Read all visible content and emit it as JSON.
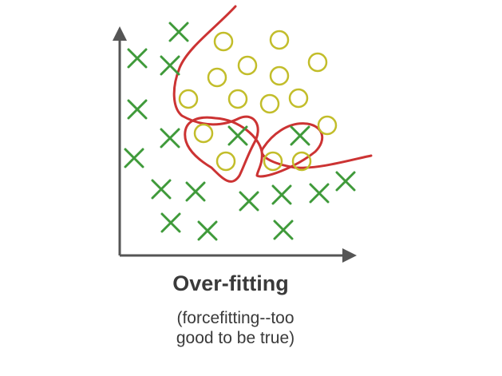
{
  "title": "Over-fitting",
  "subtitle_line1": "(forcefitting--too",
  "subtitle_line2": "good to be true)",
  "colors": {
    "cross": "#3f9a3a",
    "circle": "#c2bd2a",
    "boundary": "#cc3333",
    "axis": "#555555",
    "text": "#3a3a3a"
  },
  "icons": {
    "cross": "cross-marker",
    "circle": "circle-marker"
  }
}
